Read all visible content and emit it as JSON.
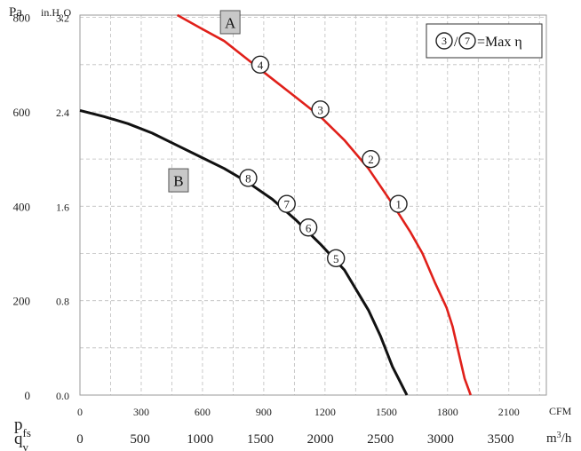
{
  "chart_data": {
    "type": "line",
    "grid": true,
    "legend_note": {
      "marker_a": "3",
      "separator": "/",
      "marker_b": "7",
      "text": "=Max η"
    },
    "left_axis": {
      "label": "Pa",
      "unit_label": "in.H2O",
      "unit_main": "in.H",
      "unit_sub": "2",
      "unit_end": "O",
      "pa_ticks": [
        "0",
        "200",
        "400",
        "600",
        "800"
      ],
      "inh2o_ticks": [
        "0.0",
        "0.8",
        "1.6",
        "2.4",
        "3.2"
      ],
      "ylim_pa": [
        0,
        805
      ]
    },
    "y_axis_name": {
      "main": "p",
      "sub": "fs"
    },
    "x_axis_name": {
      "main": "q",
      "sub": "v"
    },
    "cfm_axis": {
      "unit": "CFM",
      "ticks": [
        "0",
        "300",
        "600",
        "900",
        "1200",
        "1500",
        "1800",
        "2100"
      ],
      "tick_values": [
        0,
        300,
        600,
        900,
        1200,
        1500,
        1800,
        2100
      ]
    },
    "m3h_axis": {
      "unit_main": "m",
      "unit_sup": "3",
      "unit_end": "/h",
      "ticks": [
        "0",
        "500",
        "1000",
        "1500",
        "2000",
        "2500",
        "3000",
        "3500"
      ],
      "tick_values": [
        0,
        500,
        1000,
        1500,
        2000,
        2500,
        3000,
        3500
      ],
      "xlim": [
        0,
        3880
      ]
    },
    "series": [
      {
        "name": "A",
        "color": "#e0201a",
        "x_m3h": [
          810,
          1000,
          1200,
          1400,
          1600,
          1800,
          2000,
          2200,
          2400,
          2600,
          2750,
          2850,
          2950,
          3050,
          3100,
          3150,
          3200,
          3250
        ],
        "y_pa": [
          805,
          778,
          750,
          710,
          670,
          630,
          590,
          540,
          480,
          405,
          345,
          300,
          240,
          185,
          145,
          90,
          35,
          0
        ],
        "points": [
          {
            "label": "4",
            "x_m3h": 1500,
            "y_pa": 700
          },
          {
            "label": "3",
            "x_m3h": 2000,
            "y_pa": 605
          },
          {
            "label": "2",
            "x_m3h": 2420,
            "y_pa": 500
          },
          {
            "label": "1",
            "x_m3h": 2650,
            "y_pa": 405
          }
        ]
      },
      {
        "name": "B",
        "color": "#111111",
        "x_m3h": [
          0,
          200,
          400,
          600,
          800,
          1000,
          1200,
          1400,
          1600,
          1800,
          2000,
          2200,
          2400,
          2500,
          2600,
          2650,
          2700,
          2720
        ],
        "y_pa": [
          603,
          590,
          575,
          555,
          530,
          505,
          480,
          450,
          415,
          370,
          320,
          265,
          180,
          125,
          60,
          35,
          10,
          0
        ],
        "points": [
          {
            "label": "8",
            "x_m3h": 1400,
            "y_pa": 460
          },
          {
            "label": "7",
            "x_m3h": 1720,
            "y_pa": 405
          },
          {
            "label": "6",
            "x_m3h": 1900,
            "y_pa": 355
          },
          {
            "label": "5",
            "x_m3h": 2130,
            "y_pa": 290
          }
        ]
      }
    ]
  }
}
